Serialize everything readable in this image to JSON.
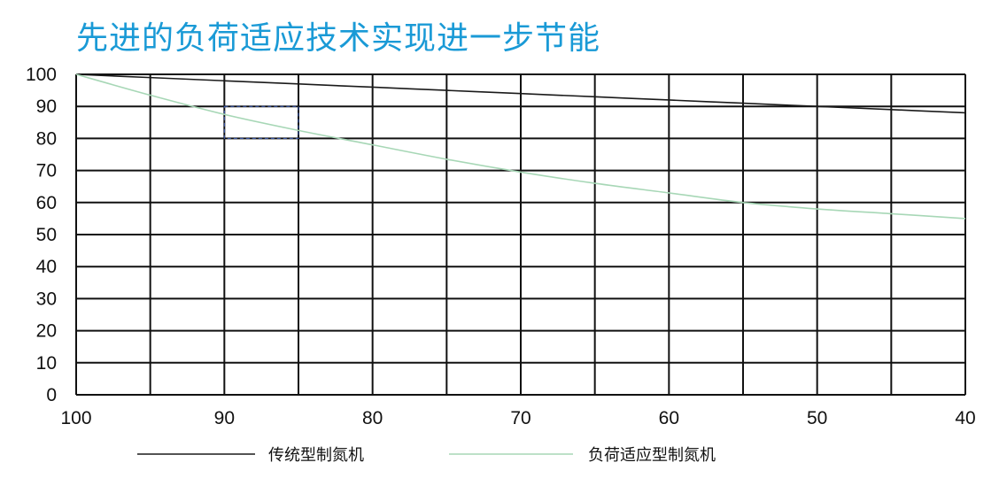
{
  "chart_data": {
    "type": "line",
    "title": "先进的负荷适应技术实现进一步节能",
    "xlabel": "",
    "ylabel": "",
    "x_ticks": [
      100,
      90,
      80,
      70,
      60,
      50,
      40
    ],
    "y_ticks": [
      0,
      10,
      20,
      30,
      40,
      50,
      60,
      70,
      80,
      90,
      100
    ],
    "xlim": [
      100,
      40
    ],
    "ylim": [
      0,
      100
    ],
    "grid": true,
    "legend_position": "bottom",
    "highlight_box": {
      "x": [
        90,
        85
      ],
      "y": [
        80,
        90
      ]
    },
    "x": [
      100,
      95,
      90,
      85,
      80,
      75,
      70,
      65,
      60,
      55,
      50,
      45,
      40
    ],
    "series": [
      {
        "name": "传统型制氮机",
        "color": "#1a1a1a",
        "values": [
          100,
          99,
          98,
          97,
          96,
          95,
          94,
          93,
          92,
          91,
          90,
          89,
          88
        ]
      },
      {
        "name": "负荷适应型制氮机",
        "color": "#a7d7b6",
        "values": [
          100,
          93.5,
          87.5,
          82.5,
          78,
          73.5,
          69.5,
          66,
          63,
          60,
          58,
          56.5,
          55
        ]
      }
    ]
  }
}
